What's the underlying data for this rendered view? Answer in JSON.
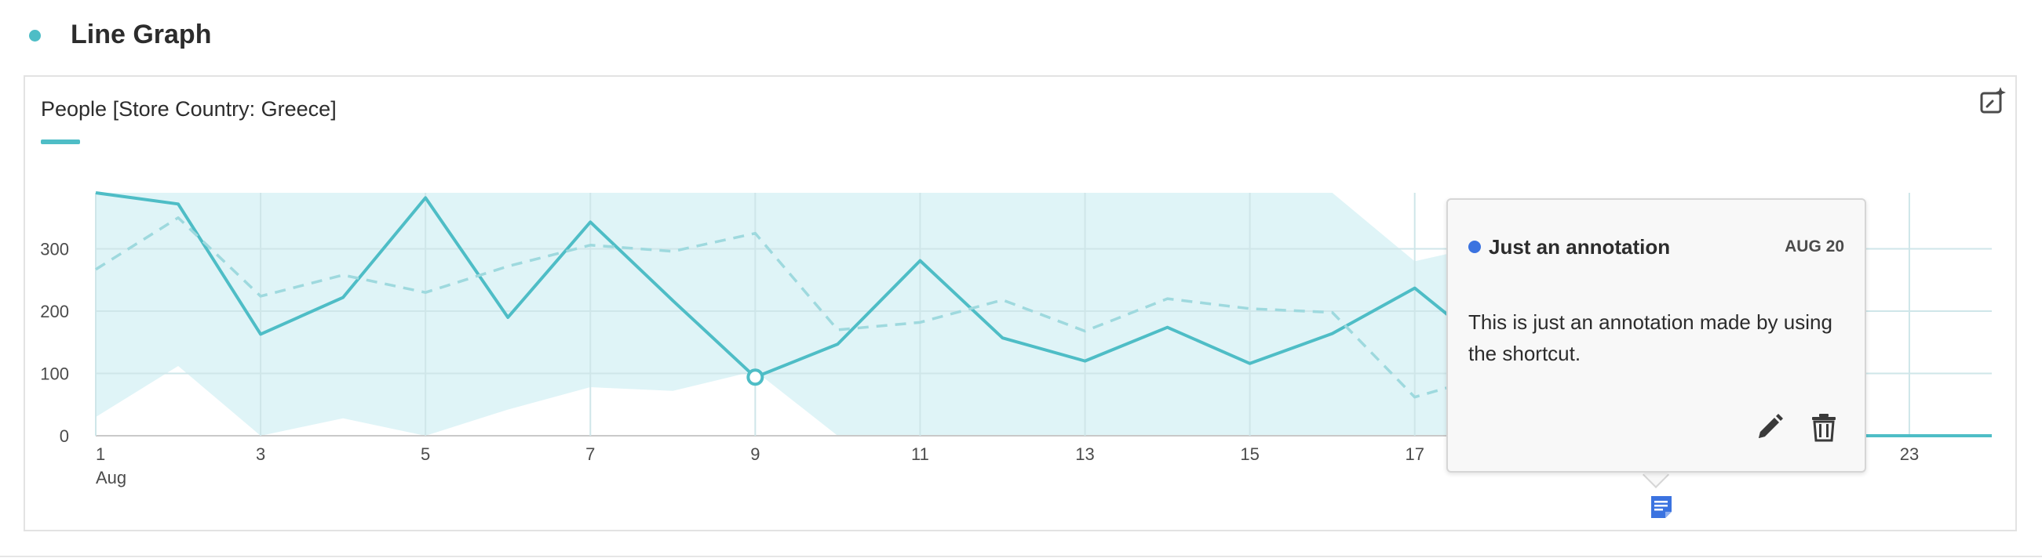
{
  "panel": {
    "title": "Line Graph"
  },
  "chart_data": {
    "type": "line",
    "title": "People [Store Country: Greece]",
    "xlabel": "",
    "ylabel": "",
    "x": [
      "1",
      "2",
      "3",
      "4",
      "5",
      "6",
      "7",
      "8",
      "9",
      "10",
      "11",
      "12",
      "13",
      "14",
      "15",
      "16",
      "17",
      "18",
      "19",
      "20",
      "21",
      "22",
      "23",
      "24"
    ],
    "x_tick_labels": [
      "1",
      "3",
      "5",
      "7",
      "9",
      "11",
      "13",
      "15",
      "17",
      "23"
    ],
    "x_tick_values": [
      1,
      3,
      5,
      7,
      9,
      11,
      13,
      15,
      17,
      23
    ],
    "x_sub_label": "Aug",
    "y_ticks": [
      0,
      100,
      200,
      300
    ],
    "ylim": [
      0,
      390
    ],
    "series": [
      {
        "values": [
          390,
          372,
          163,
          222,
          382,
          190,
          343,
          217,
          94,
          147,
          281,
          157,
          120,
          174,
          116,
          164,
          237,
          130,
          null,
          null,
          null,
          0,
          0,
          0
        ]
      },
      {
        "style": "dashed",
        "values": [
          267,
          350,
          224,
          258,
          230,
          272,
          306,
          296,
          325,
          170,
          182,
          218,
          168,
          220,
          204,
          198,
          62,
          100,
          null,
          null,
          null,
          null,
          null,
          null
        ]
      }
    ],
    "band": {
      "upper": [
        390,
        390,
        390,
        390,
        390,
        390,
        390,
        390,
        390,
        390,
        390,
        390,
        390,
        390,
        390,
        390,
        280,
        310,
        null,
        null,
        null,
        390,
        null,
        null
      ],
      "lower": [
        30,
        112,
        0,
        28,
        0,
        42,
        78,
        72,
        104,
        0,
        0,
        0,
        0,
        0,
        0,
        0,
        0,
        0,
        null,
        null,
        null,
        null,
        null,
        null
      ]
    },
    "highlighted_point": {
      "x": "9",
      "value": 94
    },
    "grid": true,
    "legend": "none"
  },
  "annotation": {
    "title": "Just an annotation",
    "date": "AUG 20",
    "body": "This is just an annotation made by using the shortcut.",
    "dot_color": "#3b73e0",
    "marker_day": 20
  },
  "colors": {
    "accent": "#4ebdc6",
    "band": "#dff4f7",
    "grid": "#cfe6e9",
    "annotation_blue": "#3b73e0"
  },
  "icons": {
    "insight": "sparkle-insight-icon",
    "edit": "pencil-icon",
    "delete": "trash-icon",
    "marker": "annotation-note-icon"
  }
}
